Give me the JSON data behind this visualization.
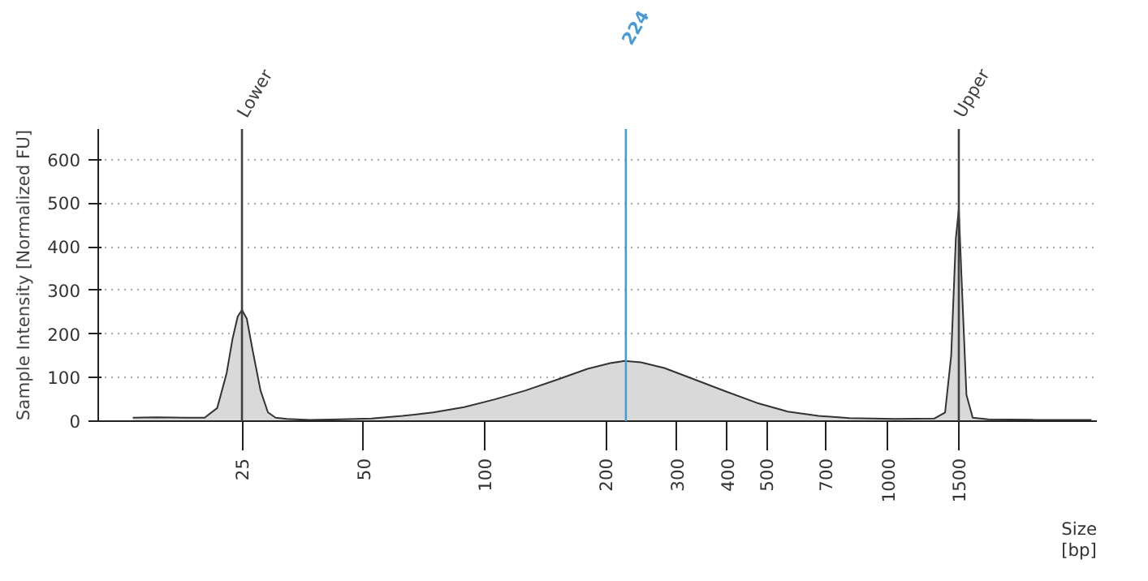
{
  "chart_data": {
    "type": "area",
    "xlabel": "Size\n[bp]",
    "ylabel": "Sample Intensity [Normalized FU]",
    "log": "x",
    "xlim": [
      11,
      3300
    ],
    "ylim": [
      0,
      670
    ],
    "xticks": [
      25,
      50,
      100,
      200,
      300,
      400,
      500,
      700,
      1000,
      1500
    ],
    "yticks": [
      0,
      100,
      200,
      300,
      400,
      500,
      600
    ],
    "grid": "y",
    "series": [
      {
        "color": "#d9d9d9",
        "x": [
          13.4,
          15.3,
          18.2,
          20.2,
          21.7,
          22.9,
          23.7,
          24.4,
          25,
          25.7,
          26.6,
          27.8,
          29.0,
          30.3,
          32.3,
          36.8,
          43.9,
          52.4,
          62.5,
          74.5,
          88.9,
          106,
          126,
          151,
          180,
          205,
          222,
          244,
          279,
          333,
          397,
          473,
          565,
          673,
          803,
          1045,
          1303,
          1387,
          1436,
          1475,
          1500,
          1528,
          1567,
          1624,
          1775,
          2312,
          3200
        ],
        "values": [
          8,
          9,
          8,
          8,
          30,
          110,
          190,
          240,
          255,
          235,
          160,
          70,
          20,
          8,
          5,
          3,
          4,
          6,
          12,
          20,
          32,
          50,
          70,
          95,
          120,
          133,
          138,
          135,
          122,
          95,
          68,
          42,
          22,
          12,
          7,
          5,
          6,
          20,
          150,
          420,
          486,
          300,
          60,
          8,
          4,
          3,
          3
        ]
      }
    ],
    "ref_lines": [
      {
        "axis": "x",
        "value": 25,
        "label": "Lower",
        "color": "#404040"
      },
      {
        "axis": "x",
        "value": 224,
        "label": "224",
        "color": "#4a9ad4"
      },
      {
        "axis": "x",
        "value": 1500,
        "label": "Upper",
        "color": "#404040"
      }
    ]
  }
}
